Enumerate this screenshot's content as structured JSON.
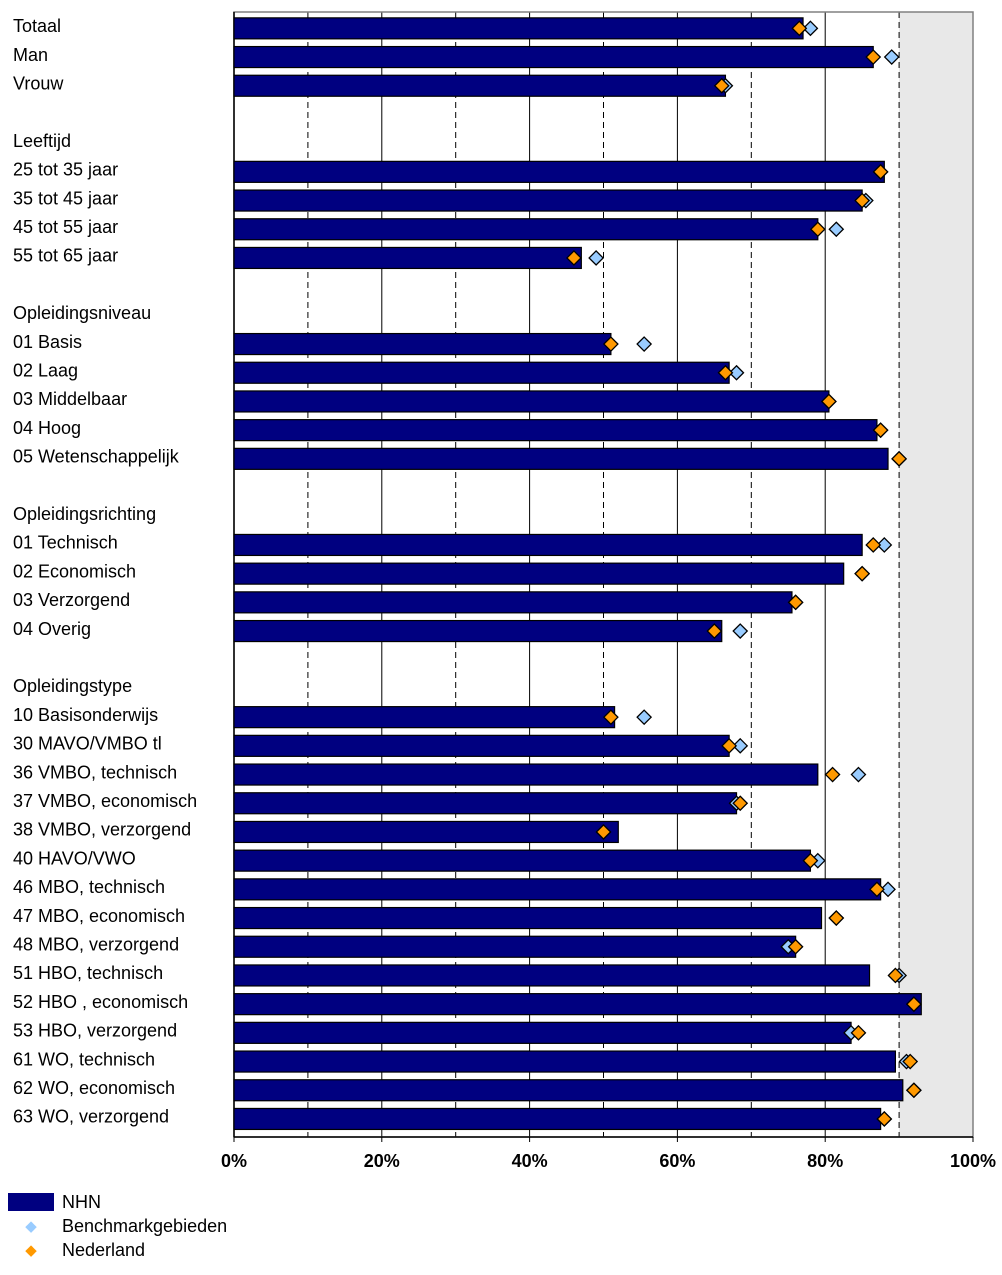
{
  "chart_data": {
    "type": "bar",
    "orientation": "horizontal",
    "rows": [
      {
        "label": "Totaal",
        "nhn": 77,
        "bench": 78,
        "nl": 76.5
      },
      {
        "label": "Man",
        "nhn": 86.5,
        "bench": 89,
        "nl": 86.5
      },
      {
        "label": "Vrouw",
        "nhn": 66.5,
        "bench": 66.5,
        "nl": 66
      },
      {
        "label": "",
        "heading": true
      },
      {
        "label": "Leeftijd",
        "heading": true
      },
      {
        "label": "25 tot 35 jaar",
        "nhn": 88,
        "bench": 87.5,
        "nl": 87.5
      },
      {
        "label": "35 tot 45 jaar",
        "nhn": 85,
        "bench": 85.5,
        "nl": 85
      },
      {
        "label": "45 tot 55 jaar",
        "nhn": 79,
        "bench": 81.5,
        "nl": 79
      },
      {
        "label": "55 tot 65 jaar",
        "nhn": 47,
        "bench": 49,
        "nl": 46
      },
      {
        "label": "",
        "heading": true
      },
      {
        "label": "Opleidingsniveau",
        "heading": true
      },
      {
        "label": "01 Basis",
        "nhn": 51,
        "bench": 55.5,
        "nl": 51
      },
      {
        "label": "02 Laag",
        "nhn": 67,
        "bench": 68,
        "nl": 66.5
      },
      {
        "label": "03 Middelbaar",
        "nhn": 80.5,
        "bench": 80.5,
        "nl": 80.5
      },
      {
        "label": "04 Hoog",
        "nhn": 87,
        "bench": 87.5,
        "nl": 87.5
      },
      {
        "label": "05 Wetenschappelijk",
        "nhn": 88.5,
        "bench": 90,
        "nl": 90
      },
      {
        "label": "",
        "heading": true
      },
      {
        "label": "Opleidingsrichting",
        "heading": true
      },
      {
        "label": "01 Technisch",
        "nhn": 85,
        "bench": 88,
        "nl": 86.5
      },
      {
        "label": "02 Economisch",
        "nhn": 82.5,
        "bench": 85,
        "nl": 85
      },
      {
        "label": "03 Verzorgend",
        "nhn": 75.5,
        "bench": 76,
        "nl": 76
      },
      {
        "label": "04 Overig",
        "nhn": 66,
        "bench": 68.5,
        "nl": 65
      },
      {
        "label": "",
        "heading": true
      },
      {
        "label": "Opleidingstype",
        "heading": true
      },
      {
        "label": "10 Basisonderwijs",
        "nhn": 51.5,
        "bench": 55.5,
        "nl": 51
      },
      {
        "label": "30 MAVO/VMBO tl",
        "nhn": 67,
        "bench": 68.5,
        "nl": 67
      },
      {
        "label": "36 VMBO, technisch",
        "nhn": 79,
        "bench": 84.5,
        "nl": 81
      },
      {
        "label": "37 VMBO, economisch",
        "nhn": 68,
        "bench": 68,
        "nl": 68.5
      },
      {
        "label": "38 VMBO, verzorgend",
        "nhn": 52,
        "bench": 50,
        "nl": 50
      },
      {
        "label": "40 HAVO/VWO",
        "nhn": 78,
        "bench": 79,
        "nl": 78
      },
      {
        "label": "46 MBO, technisch",
        "nhn": 87.5,
        "bench": 88.5,
        "nl": 87
      },
      {
        "label": "47 MBO, economisch",
        "nhn": 79.5,
        "bench": 81.5,
        "nl": 81.5
      },
      {
        "label": "48 MBO, verzorgend",
        "nhn": 76,
        "bench": 75,
        "nl": 76
      },
      {
        "label": "51 HBO, technisch",
        "nhn": 86,
        "bench": 90,
        "nl": 89.5
      },
      {
        "label": "52 HBO , economisch",
        "nhn": 93,
        "bench": 92,
        "nl": 92
      },
      {
        "label": "53 HBO, verzorgend",
        "nhn": 83.5,
        "bench": 83.5,
        "nl": 84.5
      },
      {
        "label": "61 WO, technisch",
        "nhn": 89.5,
        "bench": 91,
        "nl": 91.5
      },
      {
        "label": "62 WO, economisch",
        "nhn": 90.5,
        "bench": 92,
        "nl": 92
      },
      {
        "label": "63 WO, verzorgend",
        "nhn": 87.5,
        "bench": 88,
        "nl": 88
      }
    ],
    "xlim": [
      0,
      100
    ],
    "x_ticks": [
      "0%",
      "20%",
      "40%",
      "60%",
      "80%",
      "100%"
    ],
    "grid": "vertical",
    "series": [
      {
        "name": "NHN",
        "marker": "bar",
        "color": "#000080"
      },
      {
        "name": "Benchmarkgebieden",
        "marker": "diamond",
        "color": "#99CCFF"
      },
      {
        "name": "Nederland",
        "marker": "diamond",
        "color": "#FF9900"
      }
    ],
    "legend_position": "bottom-left",
    "plot_background": "#E8E8E8"
  }
}
